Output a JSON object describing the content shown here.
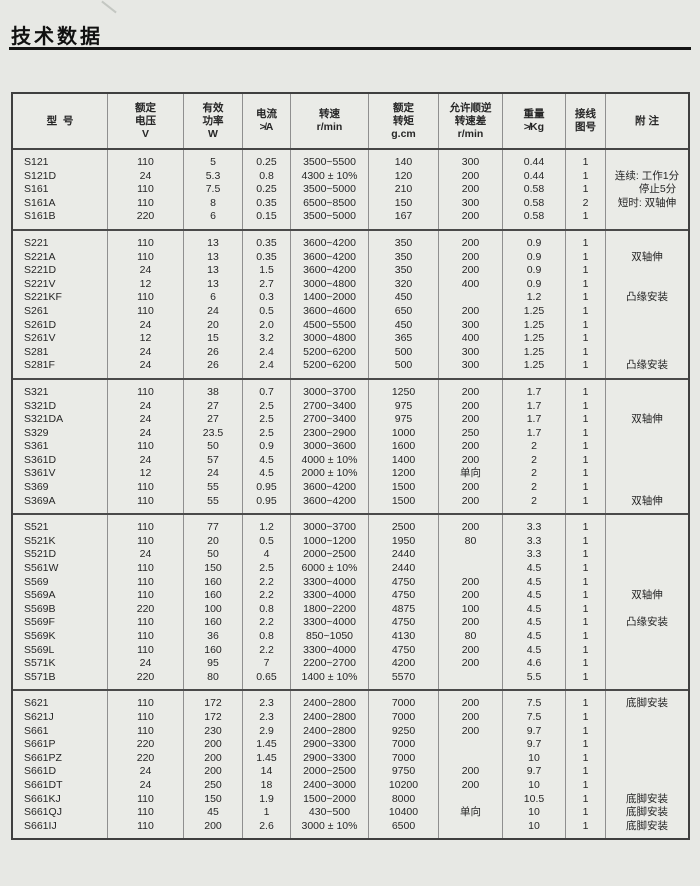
{
  "page": {
    "title": "技术数据"
  },
  "table": {
    "columns": [
      {
        "id": "model",
        "header_lines": [
          "型  号"
        ]
      },
      {
        "id": "voltage",
        "header_lines": [
          "额定",
          "电压",
          "V"
        ]
      },
      {
        "id": "power",
        "header_lines": [
          "有效",
          "功率",
          "W"
        ]
      },
      {
        "id": "current",
        "header_lines": [
          "电流",
          "≯A"
        ]
      },
      {
        "id": "speed",
        "header_lines": [
          "转速",
          "r/min"
        ]
      },
      {
        "id": "torque",
        "header_lines": [
          "额定",
          "转矩",
          "g.cm"
        ]
      },
      {
        "id": "speed-diff",
        "header_lines": [
          "允许顺逆",
          "转速差",
          "r/min"
        ]
      },
      {
        "id": "weight",
        "header_lines": [
          "重量",
          "≯Kg"
        ]
      },
      {
        "id": "diagram-no",
        "header_lines": [
          "接线",
          "图号"
        ]
      },
      {
        "id": "notes",
        "header_lines": [
          "附 注"
        ]
      }
    ],
    "groups": [
      {
        "rows": [
          [
            "S121",
            "110",
            "5",
            "0.25",
            "3500~5500",
            "140",
            "300",
            "0.44",
            "1",
            ""
          ],
          [
            "S121D",
            "24",
            "5.3",
            "0.8",
            "4300 ± 10%",
            "120",
            "200",
            "0.44",
            "1",
            "连续: 工作1分"
          ],
          [
            "S161",
            "110",
            "7.5",
            "0.25",
            "3500~5000",
            "210",
            "200",
            "0.58",
            "1",
            "　　停止5分"
          ],
          [
            "S161A",
            "110",
            "8",
            "0.35",
            "6500~8500",
            "150",
            "300",
            "0.58",
            "2",
            "短时: 双轴伸"
          ],
          [
            "S161B",
            "220",
            "6",
            "0.15",
            "3500~5000",
            "167",
            "200",
            "0.58",
            "1",
            ""
          ]
        ]
      },
      {
        "rows": [
          [
            "S221",
            "110",
            "13",
            "0.35",
            "3600~4200",
            "350",
            "200",
            "0.9",
            "1",
            ""
          ],
          [
            "S221A",
            "110",
            "13",
            "0.35",
            "3600~4200",
            "350",
            "200",
            "0.9",
            "1",
            "双轴伸"
          ],
          [
            "S221D",
            "24",
            "13",
            "1.5",
            "3600~4200",
            "350",
            "200",
            "0.9",
            "1",
            ""
          ],
          [
            "S221V",
            "12",
            "13",
            "2.7",
            "3000~4800",
            "320",
            "400",
            "0.9",
            "1",
            ""
          ],
          [
            "S221KF",
            "110",
            "6",
            "0.3",
            "1400~2000",
            "450",
            "",
            "1.2",
            "1",
            "凸缘安装"
          ],
          [
            "S261",
            "110",
            "24",
            "0.5",
            "3600~4600",
            "650",
            "200",
            "1.25",
            "1",
            ""
          ],
          [
            "S261D",
            "24",
            "20",
            "2.0",
            "4500~5500",
            "450",
            "300",
            "1.25",
            "1",
            ""
          ],
          [
            "S261V",
            "12",
            "15",
            "3.2",
            "3000~4800",
            "365",
            "400",
            "1.25",
            "1",
            ""
          ],
          [
            "S281",
            "24",
            "26",
            "2.4",
            "5200~6200",
            "500",
            "300",
            "1.25",
            "1",
            ""
          ],
          [
            "S281F",
            "24",
            "26",
            "2.4",
            "5200~6200",
            "500",
            "300",
            "1.25",
            "1",
            "凸缘安装"
          ]
        ]
      },
      {
        "rows": [
          [
            "S321",
            "110",
            "38",
            "0.7",
            "3000~3700",
            "1250",
            "200",
            "1.7",
            "1",
            ""
          ],
          [
            "S321D",
            "24",
            "27",
            "2.5",
            "2700~3400",
            "975",
            "200",
            "1.7",
            "1",
            ""
          ],
          [
            "S321DA",
            "24",
            "27",
            "2.5",
            "2700~3400",
            "975",
            "200",
            "1.7",
            "1",
            "双轴伸"
          ],
          [
            "S329",
            "24",
            "23.5",
            "2.5",
            "2300~2900",
            "1000",
            "250",
            "1.7",
            "1",
            ""
          ],
          [
            "S361",
            "110",
            "50",
            "0.9",
            "3000~3600",
            "1600",
            "200",
            "2",
            "1",
            ""
          ],
          [
            "S361D",
            "24",
            "57",
            "4.5",
            "4000 ± 10%",
            "1400",
            "200",
            "2",
            "1",
            ""
          ],
          [
            "S361V",
            "12",
            "24",
            "4.5",
            "2000 ± 10%",
            "1200",
            "单向",
            "2",
            "1",
            ""
          ],
          [
            "S369",
            "110",
            "55",
            "0.95",
            "3600~4200",
            "1500",
            "200",
            "2",
            "1",
            ""
          ],
          [
            "S369A",
            "110",
            "55",
            "0.95",
            "3600~4200",
            "1500",
            "200",
            "2",
            "1",
            "双轴伸"
          ]
        ]
      },
      {
        "rows": [
          [
            "S521",
            "110",
            "77",
            "1.2",
            "3000~3700",
            "2500",
            "200",
            "3.3",
            "1",
            ""
          ],
          [
            "S521K",
            "110",
            "20",
            "0.5",
            "1000~1200",
            "1950",
            "80",
            "3.3",
            "1",
            ""
          ],
          [
            "S521D",
            "24",
            "50",
            "4",
            "2000~2500",
            "2440",
            "",
            "3.3",
            "1",
            ""
          ],
          [
            "S561W",
            "110",
            "150",
            "2.5",
            "6000 ± 10%",
            "2440",
            "",
            "4.5",
            "1",
            ""
          ],
          [
            "S569",
            "110",
            "160",
            "2.2",
            "3300~4000",
            "4750",
            "200",
            "4.5",
            "1",
            ""
          ],
          [
            "S569A",
            "110",
            "160",
            "2.2",
            "3300~4000",
            "4750",
            "200",
            "4.5",
            "1",
            "双轴伸"
          ],
          [
            "S569B",
            "220",
            "100",
            "0.8",
            "1800~2200",
            "4875",
            "100",
            "4.5",
            "1",
            ""
          ],
          [
            "S569F",
            "110",
            "160",
            "2.2",
            "3300~4000",
            "4750",
            "200",
            "4.5",
            "1",
            "凸缘安装"
          ],
          [
            "S569K",
            "110",
            "36",
            "0.8",
            "850~1050",
            "4130",
            "80",
            "4.5",
            "1",
            ""
          ],
          [
            "S569L",
            "110",
            "160",
            "2.2",
            "3300~4000",
            "4750",
            "200",
            "4.5",
            "1",
            ""
          ],
          [
            "S571K",
            "24",
            "95",
            "7",
            "2200~2700",
            "4200",
            "200",
            "4.6",
            "1",
            ""
          ],
          [
            "S571B",
            "220",
            "80",
            "0.65",
            "1400 ± 10%",
            "5570",
            "",
            "5.5",
            "1",
            ""
          ]
        ]
      },
      {
        "rows": [
          [
            "S621",
            "110",
            "172",
            "2.3",
            "2400~2800",
            "7000",
            "200",
            "7.5",
            "1",
            "底脚安装"
          ],
          [
            "S621J",
            "110",
            "172",
            "2.3",
            "2400~2800",
            "7000",
            "200",
            "7.5",
            "1",
            ""
          ],
          [
            "S661",
            "110",
            "230",
            "2.9",
            "2400~2800",
            "9250",
            "200",
            "9.7",
            "1",
            ""
          ],
          [
            "S661P",
            "220",
            "200",
            "1.45",
            "2900~3300",
            "7000",
            "",
            "9.7",
            "1",
            ""
          ],
          [
            "S661PZ",
            "220",
            "200",
            "1.45",
            "2900~3300",
            "7000",
            "",
            "10",
            "1",
            ""
          ],
          [
            "S661D",
            "24",
            "200",
            "14",
            "2000~2500",
            "9750",
            "200",
            "9.7",
            "1",
            ""
          ],
          [
            "S661DT",
            "24",
            "250",
            "18",
            "2400~3000",
            "10200",
            "200",
            "10",
            "1",
            ""
          ],
          [
            "S661KJ",
            "110",
            "150",
            "1.9",
            "1500~2000",
            "8000",
            "",
            "10.5",
            "1",
            "底脚安装"
          ],
          [
            "S661QJ",
            "110",
            "45",
            "1",
            "430~500",
            "10400",
            "单向",
            "10",
            "1",
            "底脚安装"
          ],
          [
            "S661IJ",
            "110",
            "200",
            "2.6",
            "3000 ± 10%",
            "6500",
            "",
            "10",
            "1",
            "底脚安装"
          ]
        ]
      }
    ]
  }
}
